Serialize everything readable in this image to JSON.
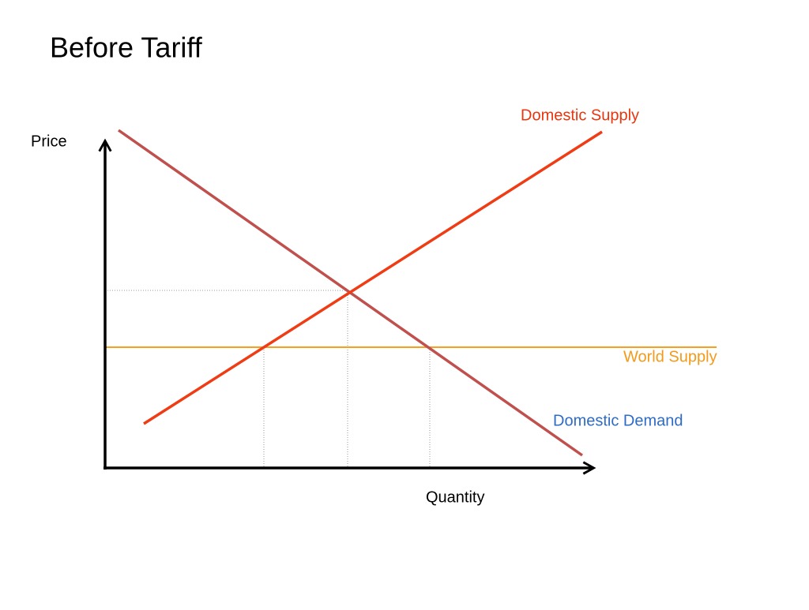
{
  "title": "Before Tariff",
  "axes": {
    "y_label": "Price",
    "x_label": "Quantity"
  },
  "curves": {
    "domestic_supply": "Domestic Supply",
    "world_supply": "World Supply",
    "domestic_demand": "Domestic Demand"
  }
}
